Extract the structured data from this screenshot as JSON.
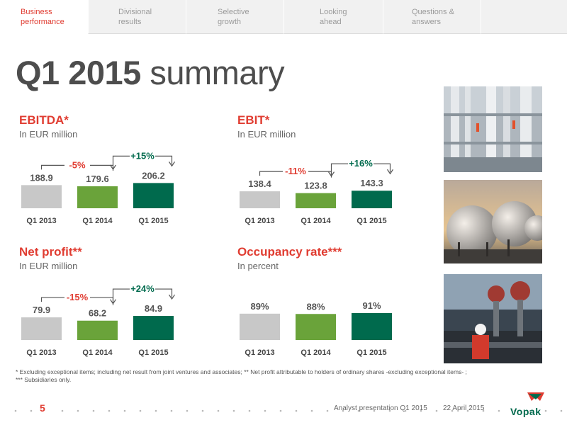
{
  "nav": {
    "tabs": [
      {
        "label": "Business\nperformance",
        "active": true
      },
      {
        "label": "Divisional\nresults",
        "active": false
      },
      {
        "label": "Selective\ngrowth",
        "active": false
      },
      {
        "label": "Looking\nahead",
        "active": false
      },
      {
        "label": "Questions &\nanswers",
        "active": false
      }
    ]
  },
  "page": {
    "title_bold": "Q1 2015",
    "title_rest": " summary"
  },
  "colors": {
    "accent_red": "#e03c31",
    "bar_grey": "#c8c8c8",
    "bar_light_green": "#6aa33a",
    "bar_dark_green": "#006a4d"
  },
  "chart_data": [
    {
      "type": "bar",
      "title": "EBITDA*",
      "subtitle": "In EUR million",
      "categories": [
        "Q1 2013",
        "Q1 2014",
        "Q1 2015"
      ],
      "values": [
        188.9,
        179.6,
        206.2
      ],
      "value_labels": [
        "188.9",
        "179.6",
        "206.2"
      ],
      "changes": [
        {
          "from": 0,
          "to": 1,
          "label": "-5%",
          "color": "#e03c31"
        },
        {
          "from": 1,
          "to": 2,
          "label": "+15%",
          "color": "#006a4d"
        }
      ],
      "ylim": [
        0,
        220
      ]
    },
    {
      "type": "bar",
      "title": "EBIT*",
      "subtitle": "In EUR million",
      "categories": [
        "Q1 2013",
        "Q1 2014",
        "Q1 2015"
      ],
      "values": [
        138.4,
        123.8,
        143.3
      ],
      "value_labels": [
        "138.4",
        "123.8",
        "143.3"
      ],
      "changes": [
        {
          "from": 0,
          "to": 1,
          "label": "-11%",
          "color": "#e03c31"
        },
        {
          "from": 1,
          "to": 2,
          "label": "+16%",
          "color": "#006a4d"
        }
      ],
      "ylim": [
        0,
        220
      ]
    },
    {
      "type": "bar",
      "title": "Net profit**",
      "subtitle": "In EUR million",
      "categories": [
        "Q1 2013",
        "Q1 2014",
        "Q1 2015"
      ],
      "values": [
        79.9,
        68.2,
        84.9
      ],
      "value_labels": [
        "79.9",
        "68.2",
        "84.9"
      ],
      "changes": [
        {
          "from": 0,
          "to": 1,
          "label": "-15%",
          "color": "#e03c31"
        },
        {
          "from": 1,
          "to": 2,
          "label": "+24%",
          "color": "#006a4d"
        }
      ],
      "ylim": [
        0,
        95
      ]
    },
    {
      "type": "bar",
      "title": "Occupancy rate***",
      "subtitle": "In percent",
      "categories": [
        "Q1 2013",
        "Q1 2014",
        "Q1 2015"
      ],
      "values": [
        89,
        88,
        91
      ],
      "value_labels": [
        "89%",
        "88%",
        "91%"
      ],
      "changes": [],
      "ylim": [
        0,
        91
      ]
    }
  ],
  "footnote": {
    "line1": "* Excluding exceptional items; including net result from joint ventures and associates; ** Net profit attributable to holders of ordinary shares -excluding exceptional items- ;",
    "line2": "*** Subsidiaries only."
  },
  "footer": {
    "page_number": "5",
    "presentation": "Analyst presentation Q1 2015",
    "date": "22 April 2015",
    "logo_text": "Vopak"
  },
  "photos": [
    "storage-tank-pipework-photo",
    "spherical-gas-tanks-photo",
    "operator-at-valves-photo"
  ]
}
